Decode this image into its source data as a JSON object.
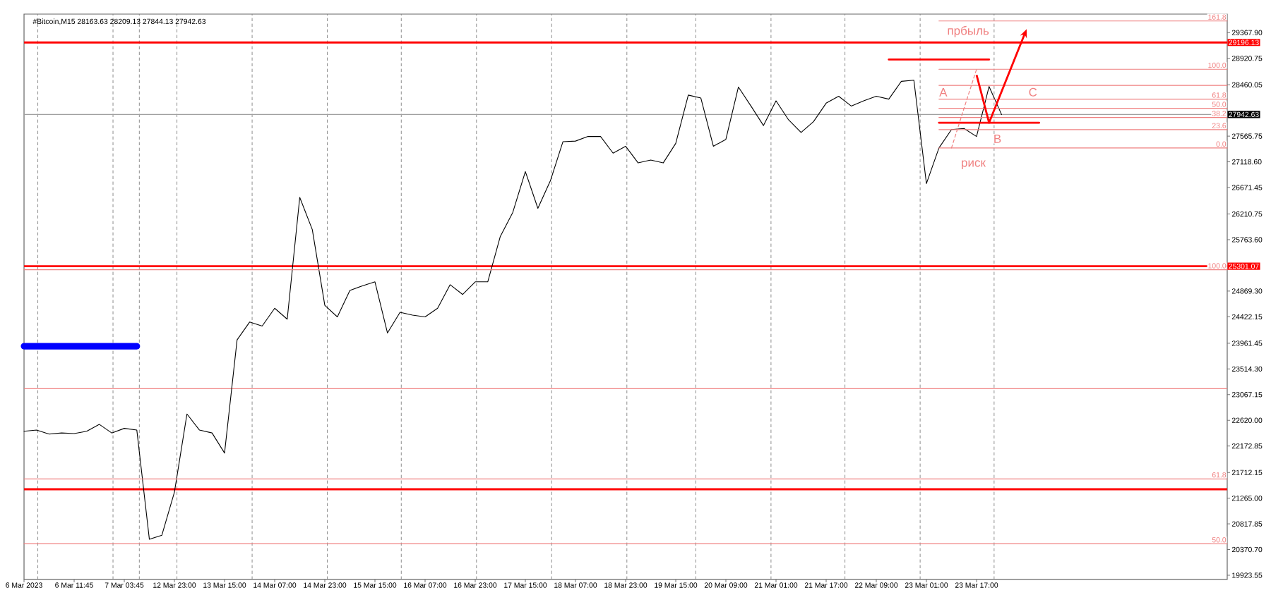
{
  "chart_data": {
    "type": "line",
    "title": "#Bitcoin,M15 28163.63 28209.13 27844.13 27942.63",
    "categories": [
      "6 Mar 2023",
      null,
      null,
      null,
      "6 Mar 11:45",
      null,
      null,
      null,
      "7 Mar 03:45",
      null,
      null,
      null,
      "12 Mar 23:00",
      null,
      null,
      null,
      "13 Mar 15:00",
      null,
      null,
      null,
      "14 Mar 07:00",
      null,
      null,
      null,
      "14 Mar 23:00",
      null,
      null,
      null,
      "15 Mar 15:00",
      null,
      null,
      null,
      "16 Mar 07:00",
      null,
      null,
      null,
      "16 Mar 23:00",
      null,
      null,
      null,
      "17 Mar 15:00",
      null,
      null,
      null,
      "18 Mar 07:00",
      null,
      null,
      null,
      "18 Mar 23:00",
      null,
      null,
      null,
      "19 Mar 15:00",
      null,
      null,
      null,
      "20 Mar 09:00",
      null,
      null,
      null,
      "21 Mar 01:00",
      null,
      null,
      null,
      "21 Mar 17:00",
      null,
      null,
      null,
      "22 Mar 09:00",
      null,
      null,
      null,
      "23 Mar 01:00",
      null,
      null,
      null,
      "23 Mar 17:00",
      null,
      null,
      null,
      null,
      null,
      null,
      null,
      null,
      null,
      null,
      null,
      null,
      null,
      null,
      null,
      null,
      null,
      null,
      null,
      null
    ],
    "ylim": [
      19850,
      29690
    ],
    "yticks": [
      {
        "value": 29367.9,
        "label": "29367.90"
      },
      {
        "value": 28920.75,
        "label": "28920.75"
      },
      {
        "value": 28460.05,
        "label": "28460.05"
      },
      {
        "value": 27565.75,
        "label": "27565.75"
      },
      {
        "value": 27118.6,
        "label": "27118.60"
      },
      {
        "value": 26671.45,
        "label": "26671.45"
      },
      {
        "value": 26210.75,
        "label": "26210.75"
      },
      {
        "value": 25763.6,
        "label": "25763.60"
      },
      {
        "value": 24869.3,
        "label": "24869.30"
      },
      {
        "value": 24422.15,
        "label": "24422.15"
      },
      {
        "value": 23961.45,
        "label": "23961.45"
      },
      {
        "value": 23514.3,
        "label": "23514.30"
      },
      {
        "value": 23067.15,
        "label": "23067.15"
      },
      {
        "value": 22620,
        "label": "22620.00"
      },
      {
        "value": 22172.85,
        "label": "22172.85"
      },
      {
        "value": 21712.15,
        "label": "21712.15"
      },
      {
        "value": 21265,
        "label": "21265.00"
      },
      {
        "value": 20817.85,
        "label": "20817.85"
      },
      {
        "value": 20370.7,
        "label": "20370.70"
      },
      {
        "value": 19923.55,
        "label": "19923.55"
      }
    ],
    "grid": "x",
    "series": [
      {
        "color": "#000000",
        "values": [
          22430,
          22450,
          22380,
          22400,
          22390,
          22430,
          22550,
          22400,
          22480,
          22450,
          20550,
          20620,
          21370,
          22730,
          22450,
          22400,
          22050,
          24020,
          24330,
          24260,
          24570,
          24380,
          26500,
          25940,
          24620,
          24420,
          24880,
          24960,
          25030,
          24140,
          24500,
          24450,
          24420,
          24570,
          24980,
          24810,
          25030,
          25030,
          25820,
          26240,
          26950,
          26310,
          26790,
          27470,
          27480,
          27560,
          27560,
          27270,
          27390,
          27100,
          27150,
          27100,
          27440,
          28280,
          28230,
          27390,
          27510,
          28420,
          28090,
          27750,
          28180,
          27850,
          27630,
          27820,
          28140,
          28260,
          28090,
          28180,
          28260,
          28210,
          28520,
          28540,
          26740,
          27360,
          27680,
          27700,
          27560,
          28430,
          27940,
          null,
          null,
          null,
          null,
          null,
          null,
          null,
          null,
          null,
          null,
          null,
          null,
          null,
          null,
          null,
          null,
          null,
          null
        ]
      },
      {
        "color": "#0000ff",
        "values": [
          23910,
          23910,
          23910,
          23910,
          23910,
          23910,
          23910,
          23910,
          23910,
          23910,
          null,
          null,
          null,
          null,
          null,
          null,
          null,
          null,
          null,
          null,
          null,
          null,
          null,
          null,
          null,
          null,
          null,
          null,
          null,
          null,
          null,
          null,
          null,
          null,
          null,
          null,
          null,
          null,
          null,
          null,
          null,
          null,
          null,
          null,
          null,
          null,
          null,
          null,
          null,
          null,
          null,
          null,
          null,
          null,
          null,
          null,
          null,
          null,
          null,
          null,
          null,
          null,
          null,
          null,
          null,
          null,
          null,
          null,
          null,
          null,
          null,
          null,
          null,
          null,
          null,
          null,
          null,
          null,
          null,
          null,
          null,
          null,
          null,
          null,
          null,
          null,
          null,
          null,
          null,
          null,
          null,
          null,
          null,
          null,
          null,
          null,
          null
        ]
      },
      {
        "name": "100.0",
        "color": "#f08080",
        "values": [
          25240,
          25240,
          25240,
          25240,
          25240,
          25240,
          25240,
          25240,
          25240,
          25240,
          25240,
          25240,
          25240,
          25240,
          25240,
          25240,
          25240,
          25240,
          25240,
          25240,
          25240,
          25240,
          25240,
          25240,
          25240,
          25240,
          25240,
          25240,
          25240,
          25240,
          25240,
          25240,
          25240,
          25240,
          25240,
          25240,
          25240,
          25240,
          25240,
          25240,
          25240,
          25240,
          25240,
          25240,
          25240,
          25240,
          25240,
          25240,
          25240,
          25240,
          25240,
          25240,
          25240,
          25240,
          25240,
          25240,
          25240,
          25240,
          25240,
          25240,
          25240,
          25240,
          25240,
          25240,
          25240,
          25240,
          25240,
          25240,
          25240,
          25240,
          25240,
          25240,
          25240,
          25240,
          25240,
          25240,
          25240,
          25240,
          25240,
          25240,
          25240,
          25240,
          25240,
          25240,
          25240,
          25240,
          25240,
          25240,
          25240,
          25240,
          25240,
          25240,
          25240,
          25240,
          25240,
          25240,
          25240
        ]
      },
      {
        "name": "61.8",
        "color": "#f08080",
        "values": [
          21600,
          21600,
          21600,
          21600,
          21600,
          21600,
          21600,
          21600,
          21600,
          21600,
          21600,
          21600,
          21600,
          21600,
          21600,
          21600,
          21600,
          21600,
          21600,
          21600,
          21600,
          21600,
          21600,
          21600,
          21600,
          21600,
          21600,
          21600,
          21600,
          21600,
          21600,
          21600,
          21600,
          21600,
          21600,
          21600,
          21600,
          21600,
          21600,
          21600,
          21600,
          21600,
          21600,
          21600,
          21600,
          21600,
          21600,
          21600,
          21600,
          21600,
          21600,
          21600,
          21600,
          21600,
          21600,
          21600,
          21600,
          21600,
          21600,
          21600,
          21600,
          21600,
          21600,
          21600,
          21600,
          21600,
          21600,
          21600,
          21600,
          21600,
          21600,
          21600,
          21600,
          21600,
          21600,
          21600,
          21600,
          21600,
          21600,
          21600,
          21600,
          21600,
          21600,
          21600,
          21600,
          21600,
          21600,
          21600,
          21600,
          21600,
          21600,
          21600,
          21600,
          21600,
          21600,
          21600,
          21600
        ]
      },
      {
        "name": "50.0",
        "color": "#f08080",
        "values": [
          20470,
          20470,
          20470,
          20470,
          20470,
          20470,
          20470,
          20470,
          20470,
          20470,
          20470,
          20470,
          20470,
          20470,
          20470,
          20470,
          20470,
          20470,
          20470,
          20470,
          20470,
          20470,
          20470,
          20470,
          20470,
          20470,
          20470,
          20470,
          20470,
          20470,
          20470,
          20470,
          20470,
          20470,
          20470,
          20470,
          20470,
          20470,
          20470,
          20470,
          20470,
          20470,
          20470,
          20470,
          20470,
          20470,
          20470,
          20470,
          20470,
          20470,
          20470,
          20470,
          20470,
          20470,
          20470,
          20470,
          20470,
          20470,
          20470,
          20470,
          20470,
          20470,
          20470,
          20470,
          20470,
          20470,
          20470,
          20470,
          20470,
          20470,
          20470,
          20470,
          20470,
          20470,
          20470,
          20470,
          20470,
          20470,
          20470,
          20470,
          20470,
          20470,
          20470,
          20470,
          20470,
          20470,
          20470,
          20470,
          20470,
          20470,
          20470,
          20470,
          20470,
          20470,
          20470,
          20470,
          20470
        ]
      },
      {
        "color": "#ff0000",
        "values": [
          null,
          null,
          null,
          null,
          null,
          null,
          null,
          null,
          null,
          null,
          null,
          null,
          null,
          null,
          null,
          null,
          null,
          null,
          null,
          null,
          null,
          null,
          null,
          null,
          null,
          null,
          null,
          null,
          null,
          null,
          null,
          null,
          null,
          null,
          null,
          null,
          null,
          null,
          null,
          null,
          null,
          null,
          null,
          null,
          null,
          null,
          null,
          null,
          null,
          null,
          null,
          null,
          null,
          null,
          null,
          null,
          null,
          null,
          null,
          null,
          null,
          null,
          null,
          null,
          null,
          null,
          null,
          null,
          null,
          28900,
          28900,
          28900,
          28900,
          28900,
          28900,
          28900,
          28900,
          28900,
          null,
          null,
          null,
          null,
          null,
          null,
          null,
          null,
          null,
          null,
          null,
          null,
          null,
          null,
          null,
          null,
          null,
          null,
          null
        ]
      },
      {
        "color": "#ff0000",
        "values": [
          null,
          null,
          null,
          null,
          null,
          null,
          null,
          null,
          null,
          null,
          null,
          null,
          null,
          null,
          null,
          null,
          null,
          null,
          null,
          null,
          null,
          null,
          null,
          null,
          null,
          null,
          null,
          null,
          null,
          null,
          null,
          null,
          null,
          null,
          null,
          null,
          null,
          null,
          null,
          null,
          null,
          null,
          null,
          null,
          null,
          null,
          null,
          null,
          null,
          null,
          null,
          null,
          null,
          null,
          null,
          null,
          null,
          null,
          null,
          null,
          null,
          null,
          null,
          null,
          null,
          null,
          null,
          null,
          null,
          null,
          null,
          null,
          null,
          27800,
          27800,
          27800,
          27800,
          27800,
          27800,
          27800,
          27800,
          27800,
          null,
          null,
          null,
          null,
          null,
          null,
          null,
          null,
          null,
          null,
          null,
          null,
          null,
          null,
          null
        ]
      },
      {
        "name": "0.0",
        "color": "#f08080",
        "values": [
          null,
          null,
          null,
          null,
          null,
          null,
          null,
          null,
          null,
          null,
          null,
          null,
          null,
          null,
          null,
          null,
          null,
          null,
          null,
          null,
          null,
          null,
          null,
          null,
          null,
          null,
          null,
          null,
          null,
          null,
          null,
          null,
          null,
          null,
          null,
          null,
          null,
          null,
          null,
          null,
          null,
          null,
          null,
          null,
          null,
          null,
          null,
          null,
          null,
          null,
          null,
          null,
          null,
          null,
          null,
          null,
          null,
          null,
          null,
          null,
          null,
          null,
          null,
          null,
          null,
          null,
          null,
          null,
          null,
          null,
          null,
          null,
          null,
          27360,
          27360,
          27360,
          27360,
          27360,
          27360,
          27360,
          27360,
          27360,
          27360,
          27360,
          27360,
          27360,
          27360,
          27360,
          27360,
          27360,
          27360,
          27360,
          27360,
          27360,
          27360,
          27360,
          27360
        ]
      },
      {
        "name": "23.6",
        "color": "#f08080",
        "values": [
          null,
          null,
          null,
          null,
          null,
          null,
          null,
          null,
          null,
          null,
          null,
          null,
          null,
          null,
          null,
          null,
          null,
          null,
          null,
          null,
          null,
          null,
          null,
          null,
          null,
          null,
          null,
          null,
          null,
          null,
          null,
          null,
          null,
          null,
          null,
          null,
          null,
          null,
          null,
          null,
          null,
          null,
          null,
          null,
          null,
          null,
          null,
          null,
          null,
          null,
          null,
          null,
          null,
          null,
          null,
          null,
          null,
          null,
          null,
          null,
          null,
          null,
          null,
          null,
          null,
          null,
          null,
          null,
          null,
          null,
          null,
          null,
          null,
          27680,
          27680,
          27680,
          27680,
          27680,
          27680,
          27680,
          27680,
          27680,
          27680,
          27680,
          27680,
          27680,
          27680,
          27680,
          27680,
          27680,
          27680,
          27680,
          27680,
          27680,
          27680,
          27680,
          27680
        ]
      },
      {
        "name": "38.2",
        "color": "#f08080",
        "values": [
          null,
          null,
          null,
          null,
          null,
          null,
          null,
          null,
          null,
          null,
          null,
          null,
          null,
          null,
          null,
          null,
          null,
          null,
          null,
          null,
          null,
          null,
          null,
          null,
          null,
          null,
          null,
          null,
          null,
          null,
          null,
          null,
          null,
          null,
          null,
          null,
          null,
          null,
          null,
          null,
          null,
          null,
          null,
          null,
          null,
          null,
          null,
          null,
          null,
          null,
          null,
          null,
          null,
          null,
          null,
          null,
          null,
          null,
          null,
          null,
          null,
          null,
          null,
          null,
          null,
          null,
          null,
          null,
          null,
          null,
          null,
          null,
          null,
          27890,
          27890,
          27890,
          27890,
          27890,
          27890,
          27890,
          27890,
          27890,
          27890,
          27890,
          27890,
          27890,
          27890,
          27890,
          27890,
          27890,
          27890,
          27890,
          27890,
          27890,
          27890,
          27890,
          27890
        ]
      },
      {
        "name": "50.0",
        "color": "#f08080",
        "values": [
          null,
          null,
          null,
          null,
          null,
          null,
          null,
          null,
          null,
          null,
          null,
          null,
          null,
          null,
          null,
          null,
          null,
          null,
          null,
          null,
          null,
          null,
          null,
          null,
          null,
          null,
          null,
          null,
          null,
          null,
          null,
          null,
          null,
          null,
          null,
          null,
          null,
          null,
          null,
          null,
          null,
          null,
          null,
          null,
          null,
          null,
          null,
          null,
          null,
          null,
          null,
          null,
          null,
          null,
          null,
          null,
          null,
          null,
          null,
          null,
          null,
          null,
          null,
          null,
          null,
          null,
          null,
          null,
          null,
          null,
          null,
          null,
          null,
          28050,
          28050,
          28050,
          28050,
          28050,
          28050,
          28050,
          28050,
          28050,
          28050,
          28050,
          28050,
          28050,
          28050,
          28050,
          28050,
          28050,
          28050,
          28050,
          28050,
          28050,
          28050,
          28050,
          28050
        ]
      },
      {
        "name": "61.8",
        "color": "#f08080",
        "values": [
          null,
          null,
          null,
          null,
          null,
          null,
          null,
          null,
          null,
          null,
          null,
          null,
          null,
          null,
          null,
          null,
          null,
          null,
          null,
          null,
          null,
          null,
          null,
          null,
          null,
          null,
          null,
          null,
          null,
          null,
          null,
          null,
          null,
          null,
          null,
          null,
          null,
          null,
          null,
          null,
          null,
          null,
          null,
          null,
          null,
          null,
          null,
          null,
          null,
          null,
          null,
          null,
          null,
          null,
          null,
          null,
          null,
          null,
          null,
          null,
          null,
          null,
          null,
          null,
          null,
          null,
          null,
          null,
          null,
          null,
          null,
          null,
          null,
          28210,
          28210,
          28210,
          28210,
          28210,
          28210,
          28210,
          28210,
          28210,
          28210,
          28210,
          28210,
          28210,
          28210,
          28210,
          28210,
          28210,
          28210,
          28210,
          28210,
          28210,
          28210,
          28210,
          28210
        ]
      },
      {
        "color": "#f08080",
        "values": [
          null,
          null,
          null,
          null,
          null,
          null,
          null,
          null,
          null,
          null,
          null,
          null,
          null,
          null,
          null,
          null,
          null,
          null,
          null,
          null,
          null,
          null,
          null,
          null,
          null,
          null,
          null,
          null,
          null,
          null,
          null,
          null,
          null,
          null,
          null,
          null,
          null,
          null,
          null,
          null,
          null,
          null,
          null,
          null,
          null,
          null,
          null,
          null,
          null,
          null,
          null,
          null,
          null,
          null,
          null,
          null,
          null,
          null,
          null,
          null,
          null,
          null,
          null,
          null,
          null,
          null,
          null,
          null,
          null,
          null,
          null,
          null,
          null,
          28450,
          28450,
          28450,
          28450,
          28450,
          28450,
          28450,
          28450,
          28450,
          28450,
          28450,
          28450,
          28450,
          28450,
          28450,
          28450,
          28450,
          28450,
          28450,
          28450,
          28450,
          28450,
          28450,
          28450
        ]
      },
      {
        "name": "100.0",
        "color": "#f08080",
        "values": [
          null,
          null,
          null,
          null,
          null,
          null,
          null,
          null,
          null,
          null,
          null,
          null,
          null,
          null,
          null,
          null,
          null,
          null,
          null,
          null,
          null,
          null,
          null,
          null,
          null,
          null,
          null,
          null,
          null,
          null,
          null,
          null,
          null,
          null,
          null,
          null,
          null,
          null,
          null,
          null,
          null,
          null,
          null,
          null,
          null,
          null,
          null,
          null,
          null,
          null,
          null,
          null,
          null,
          null,
          null,
          null,
          null,
          null,
          null,
          null,
          null,
          null,
          null,
          null,
          null,
          null,
          null,
          null,
          null,
          null,
          null,
          null,
          null,
          28730,
          28730,
          28730,
          28730,
          28730,
          28730,
          28730,
          28730,
          28730,
          28730,
          28730,
          28730,
          28730,
          28730,
          28730,
          28730,
          28730,
          28730,
          28730,
          28730,
          28730,
          28730,
          28730,
          28730
        ]
      },
      {
        "name": "161.8",
        "color": "#f08080",
        "values": [
          null,
          null,
          null,
          null,
          null,
          null,
          null,
          null,
          null,
          null,
          null,
          null,
          null,
          null,
          null,
          null,
          null,
          null,
          null,
          null,
          null,
          null,
          null,
          null,
          null,
          null,
          null,
          null,
          null,
          null,
          null,
          null,
          null,
          null,
          null,
          null,
          null,
          null,
          null,
          null,
          null,
          null,
          null,
          null,
          null,
          null,
          null,
          null,
          null,
          null,
          null,
          null,
          null,
          null,
          null,
          null,
          null,
          null,
          null,
          null,
          null,
          null,
          null,
          null,
          null,
          null,
          null,
          null,
          null,
          null,
          null,
          null,
          null,
          29570,
          29570,
          29570,
          29570,
          29570,
          29570,
          29570,
          29570,
          29570,
          29570,
          29570,
          29570,
          29570,
          29570,
          29570,
          29570,
          29570,
          29570,
          29570,
          29570,
          29570,
          29570,
          29570,
          29570
        ]
      },
      {
        "color": "#f08080",
        "line_style": "dashed",
        "values": [
          null,
          null,
          null,
          null,
          null,
          null,
          null,
          null,
          null,
          null,
          null,
          null,
          null,
          null,
          null,
          null,
          null,
          null,
          null,
          null,
          null,
          null,
          null,
          null,
          null,
          null,
          null,
          null,
          null,
          null,
          null,
          null,
          null,
          null,
          null,
          null,
          null,
          null,
          null,
          null,
          null,
          null,
          null,
          null,
          null,
          null,
          null,
          null,
          null,
          null,
          null,
          null,
          null,
          null,
          null,
          null,
          null,
          null,
          null,
          null,
          null,
          null,
          null,
          null,
          null,
          null,
          null,
          null,
          null,
          null,
          null,
          null,
          null,
          null,
          27360,
          28050,
          28730,
          null,
          null,
          null,
          null,
          null,
          null,
          null,
          null,
          null,
          null,
          null,
          null,
          null,
          null,
          null,
          null,
          null,
          null,
          null,
          null
        ]
      }
    ],
    "ref_lines": [
      {
        "axis": "y",
        "value": 29196.13,
        "label": "29196.13",
        "color": "#ff0000"
      },
      {
        "axis": "y",
        "value": 27942.63,
        "label": "27942.63",
        "color": "#a0a0a0"
      },
      {
        "axis": "y",
        "value": 25301.07,
        "label": "25301.07",
        "color": "#ff0000"
      },
      {
        "axis": "y",
        "value": 23170,
        "color": "#f08080"
      },
      {
        "axis": "y",
        "value": 21420,
        "color": "#ff0000"
      }
    ],
    "annotations": [
      "A",
      "B",
      "C",
      "прбыль",
      "риск"
    ]
  }
}
